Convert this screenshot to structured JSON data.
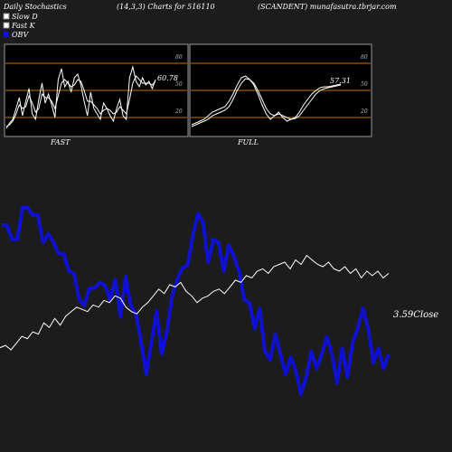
{
  "header": {
    "left": "Daily Stochastics",
    "middle": "(14,3,3) Charts for 516110",
    "right": "(SCANDENT) munafasutra.tbrjar.com"
  },
  "legend": [
    {
      "label": "Slow  D",
      "color": "#ffffff"
    },
    {
      "label": "Fast K",
      "color": "#ffffff"
    },
    {
      "label": "OBV",
      "color": "#1010d0"
    }
  ],
  "colors": {
    "background": "#1c1c1c",
    "panel_background": "#000000",
    "panel_border": "#9a9a9a",
    "level_line": "#c07800",
    "stoch_line": "#ffffff",
    "obv_line": "#1010d0",
    "price_line": "#ffffff"
  },
  "chart_data": [
    {
      "type": "line",
      "panel": "FAST",
      "title": "FAST",
      "ylim": [
        0,
        100
      ],
      "levels": [
        20,
        50,
        80
      ],
      "tick_labels": [
        "80",
        "50",
        "20"
      ],
      "last_value_label": "60.78",
      "series": [
        {
          "values": [
            8,
            14,
            18,
            30,
            42,
            22,
            38,
            52,
            24,
            18,
            40,
            58,
            36,
            46,
            34,
            20,
            62,
            74,
            54,
            60,
            48,
            64,
            68,
            56,
            38,
            22,
            48,
            30,
            24,
            18,
            36,
            30,
            22,
            16,
            30,
            40,
            22,
            18,
            64,
            76,
            60,
            54,
            64,
            56,
            60,
            52,
            62
          ]
        },
        {
          "values": [
            10,
            12,
            16,
            24,
            34,
            30,
            32,
            44,
            36,
            26,
            30,
            46,
            42,
            42,
            38,
            30,
            44,
            58,
            62,
            58,
            54,
            56,
            62,
            60,
            50,
            38,
            38,
            34,
            30,
            24,
            28,
            30,
            28,
            24,
            26,
            32,
            28,
            24,
            40,
            58,
            66,
            62,
            58,
            58,
            58,
            56,
            60
          ]
        }
      ]
    },
    {
      "type": "line",
      "panel": "FULL",
      "title": "FULL",
      "ylim": [
        0,
        100
      ],
      "levels": [
        20,
        50,
        80
      ],
      "tick_labels": [
        "80",
        "50",
        "20"
      ],
      "last_value_label": "57.31",
      "series": [
        {
          "values": [
            12,
            14,
            16,
            18,
            22,
            26,
            28,
            30,
            32,
            38,
            46,
            56,
            64,
            66,
            62,
            56,
            46,
            34,
            24,
            18,
            22,
            26,
            20,
            16,
            18,
            20,
            26,
            34,
            40,
            46,
            50,
            53,
            54,
            54,
            55,
            56,
            57
          ]
        },
        {
          "values": [
            10,
            12,
            14,
            16,
            18,
            22,
            24,
            26,
            28,
            32,
            40,
            50,
            58,
            63,
            62,
            58,
            50,
            40,
            30,
            24,
            22,
            24,
            22,
            20,
            18,
            19,
            22,
            28,
            34,
            40,
            46,
            50,
            52,
            53,
            54,
            55,
            56
          ]
        }
      ]
    },
    {
      "type": "line",
      "panel": "OBV",
      "last_value_label": "3.59",
      "close_label": "Close",
      "series": [
        {
          "name": "OBV",
          "values": [
            48,
            48,
            38,
            38,
            60,
            60,
            55,
            55,
            36,
            42,
            36,
            28,
            28,
            16,
            14,
            -4,
            -8,
            4,
            4,
            8,
            6,
            -4,
            10,
            -16,
            12,
            -8,
            -14,
            -34,
            -56,
            -34,
            -12,
            -42,
            -26,
            -2,
            10,
            18,
            20,
            40,
            56,
            50,
            22,
            38,
            36,
            16,
            34,
            26,
            16,
            -4,
            -6,
            -24,
            -10,
            -40,
            -46,
            -28,
            -42,
            -56,
            -44,
            -54,
            -70,
            -58,
            -40,
            -52,
            -42,
            -30,
            -42,
            -62,
            -38,
            -58,
            -34,
            -24,
            -10,
            -24,
            -48,
            -38,
            -52,
            -42
          ]
        },
        {
          "name": "Price",
          "values": [
            50,
            52,
            48,
            54,
            60,
            58,
            64,
            62,
            72,
            68,
            76,
            70,
            78,
            82,
            86,
            84,
            82,
            88,
            86,
            92,
            90,
            96,
            94,
            86,
            82,
            80,
            86,
            90,
            96,
            102,
            98,
            106,
            104,
            108,
            100,
            96,
            90,
            94,
            96,
            100,
            102,
            98,
            104,
            110,
            108,
            114,
            112,
            118,
            120,
            116,
            122,
            124,
            126,
            120,
            128,
            124,
            132,
            128,
            124,
            122,
            126,
            120,
            118,
            122,
            116,
            120,
            112,
            118,
            114,
            118,
            112,
            116
          ]
        }
      ]
    }
  ],
  "captions": {
    "fast": "FAST",
    "full": "FULL"
  }
}
